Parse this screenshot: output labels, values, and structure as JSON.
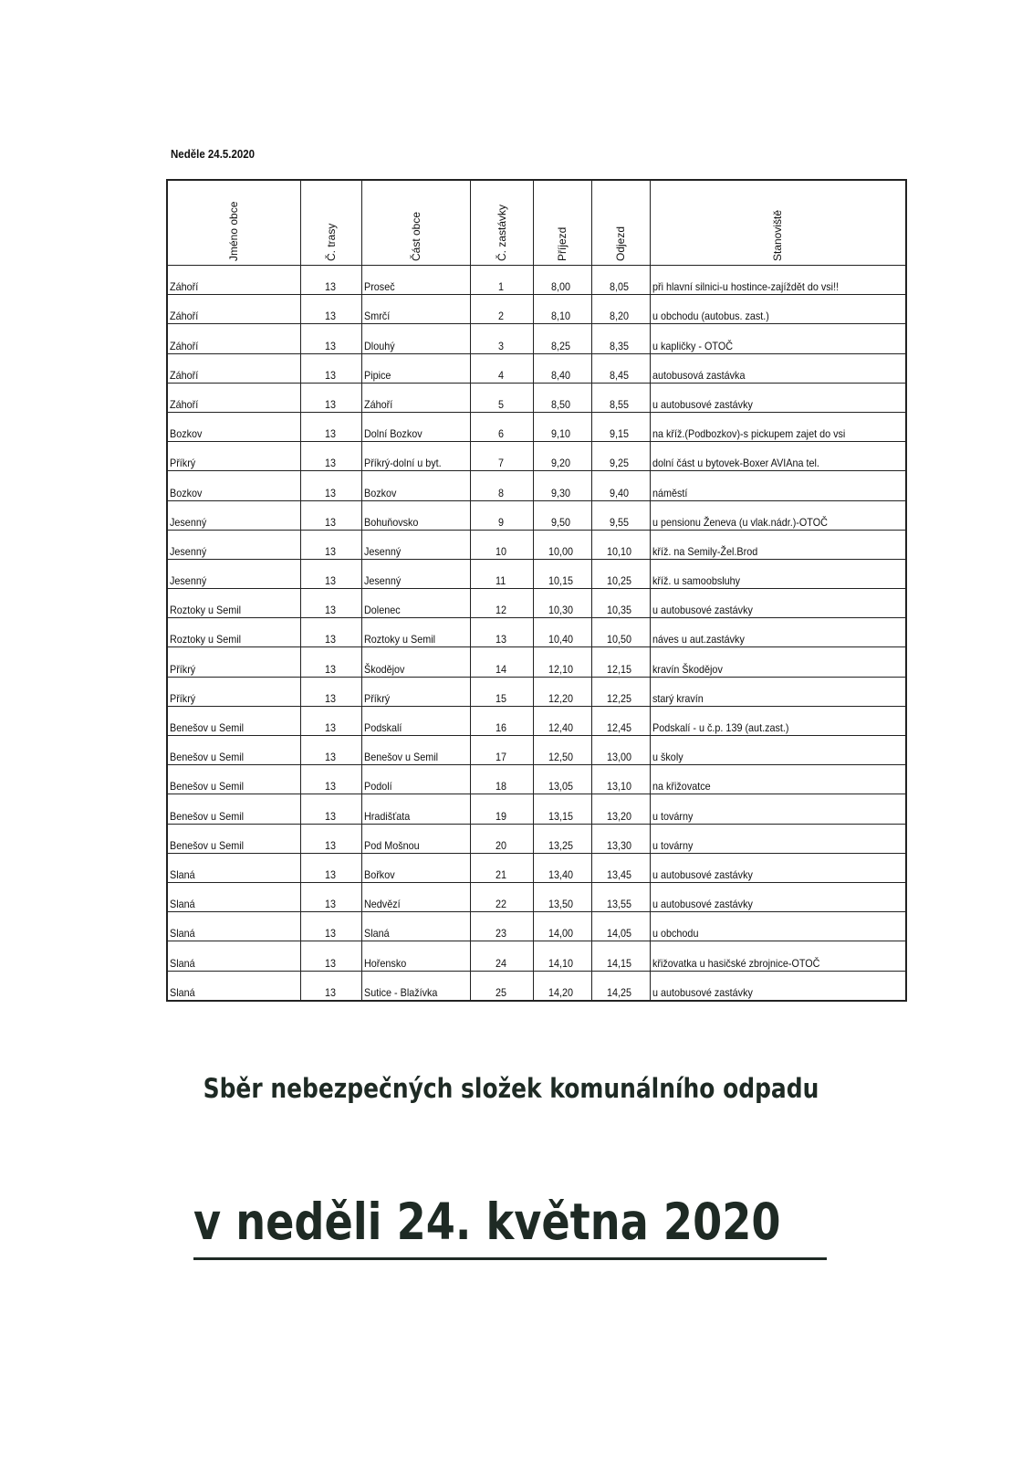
{
  "document": {
    "date_heading": "Neděle 24.5.2020",
    "columns": [
      "Jméno obce",
      "Č. trasy",
      "Část obce",
      "Č. zastávky",
      "Příjezd",
      "Odjezd",
      "Stanoviště"
    ],
    "rows": [
      [
        "Záhoří",
        "13",
        "Proseč",
        "1",
        "8,00",
        "8,05",
        "při hlavní silnici-u hostince-zajíždět do vsi!!"
      ],
      [
        "Záhoří",
        "13",
        "Smrčí",
        "2",
        "8,10",
        "8,20",
        "u obchodu (autobus. zast.)"
      ],
      [
        "Záhoří",
        "13",
        "Dlouhý",
        "3",
        "8,25",
        "8,35",
        "u kapličky - OTOČ"
      ],
      [
        "Záhoří",
        "13",
        "Pipice",
        "4",
        "8,40",
        "8,45",
        "autobusová zastávka"
      ],
      [
        "Záhoří",
        "13",
        "Záhoří",
        "5",
        "8,50",
        "8,55",
        "u autobusové zastávky"
      ],
      [
        "Bozkov",
        "13",
        "Dolní Bozkov",
        "6",
        "9,10",
        "9,15",
        "na kříž.(Podbozkov)-s pickupem zajet do vsi"
      ],
      [
        "Příkrý",
        "13",
        "Příkrý-dolní u byt.",
        "7",
        "9,20",
        "9,25",
        "dolní část u bytovek-Boxer AVIAna tel."
      ],
      [
        "Bozkov",
        "13",
        "Bozkov",
        "8",
        "9,30",
        "9,40",
        "náměstí"
      ],
      [
        "Jesenný",
        "13",
        "Bohuňovsko",
        "9",
        "9,50",
        "9,55",
        "u pensionu Ženeva (u vlak.nádr.)-OTOČ"
      ],
      [
        "Jesenný",
        "13",
        "Jesenný",
        "10",
        "10,00",
        "10,10",
        "kříž. na Semily-Žel.Brod"
      ],
      [
        "Jesenný",
        "13",
        "Jesenný",
        "11",
        "10,15",
        "10,25",
        "kříž. u samoobsluhy"
      ],
      [
        "Roztoky u Semil",
        "13",
        "Dolenec",
        "12",
        "10,30",
        "10,35",
        "u autobusové zastávky"
      ],
      [
        "Roztoky u Semil",
        "13",
        "Roztoky u Semil",
        "13",
        "10,40",
        "10,50",
        "náves u aut.zastávky"
      ],
      [
        "Příkrý",
        "13",
        "Škodějov",
        "14",
        "12,10",
        "12,15",
        "kravín Škodějov"
      ],
      [
        "Příkrý",
        "13",
        "Příkrý",
        "15",
        "12,20",
        "12,25",
        "starý kravín"
      ],
      [
        "Benešov u Semil",
        "13",
        "Podskalí",
        "16",
        "12,40",
        "12,45",
        "Podskalí - u č.p. 139 (aut.zast.)"
      ],
      [
        "Benešov u Semil",
        "13",
        "Benešov u Semil",
        "17",
        "12,50",
        "13,00",
        "u školy"
      ],
      [
        "Benešov u Semil",
        "13",
        "Podolí",
        "18",
        "13,05",
        "13,10",
        "na křižovatce"
      ],
      [
        "Benešov u Semil",
        "13",
        "Hradišťata",
        "19",
        "13,15",
        "13,20",
        "u továrny"
      ],
      [
        "Benešov u Semil",
        "13",
        "Pod Mošnou",
        "20",
        "13,25",
        "13,30",
        "u továrny"
      ],
      [
        "Slaná",
        "13",
        "Bořkov",
        "21",
        "13,40",
        "13,45",
        "u autobusové zastávky"
      ],
      [
        "Slaná",
        "13",
        "Nedvězí",
        "22",
        "13,50",
        "13,55",
        "u autobusové zastávky"
      ],
      [
        "Slaná",
        "13",
        "Slaná",
        "23",
        "14,00",
        "14,05",
        "u obchodu"
      ],
      [
        "Slaná",
        "13",
        "Hořensko",
        "24",
        "14,10",
        "14,15",
        "křižovatka u hasičské zbrojnice-OTOČ"
      ],
      [
        "Slaná",
        "13",
        "Sutice - Blažívka",
        "25",
        "14,20",
        "14,25",
        "u autobusové zastávky"
      ]
    ],
    "title": "Sběr nebezpečných složek komunálního odpadu",
    "subtitle": "v neděli  24. května 2020"
  }
}
